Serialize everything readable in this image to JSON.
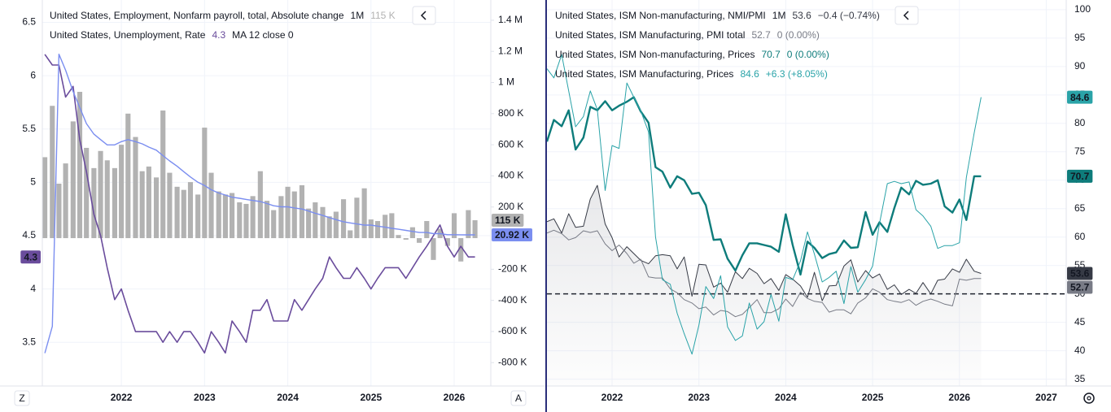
{
  "chart_data": [
    {
      "type": "bar",
      "scale_button": "Z",
      "x": [
        2021.08,
        2021.17,
        2021.25,
        2021.33,
        2021.42,
        2021.5,
        2021.58,
        2021.67,
        2021.75,
        2021.83,
        2021.92,
        2022,
        2022.08,
        2022.17,
        2022.25,
        2022.33,
        2022.42,
        2022.5,
        2022.58,
        2022.67,
        2022.75,
        2022.83,
        2022.92,
        2023,
        2023.08,
        2023.17,
        2023.25,
        2023.33,
        2023.42,
        2023.5,
        2023.58,
        2023.67,
        2023.75,
        2023.83,
        2023.92,
        2024,
        2024.08,
        2024.17,
        2024.25,
        2024.33,
        2024.42,
        2024.5,
        2024.58,
        2024.67,
        2024.75,
        2024.83,
        2024.92,
        2025,
        2025.08,
        2025.17,
        2025.25,
        2025.33,
        2025.42,
        2025.5,
        2025.58,
        2025.67,
        2025.75,
        2025.83,
        2025.92,
        2026,
        2026.08,
        2026.17,
        2026.25
      ],
      "xlim": [
        2021.05,
        2026.44
      ],
      "xticks": [
        2022,
        2023,
        2024,
        2025,
        2026
      ],
      "ylim": [
        3.09,
        6.71
      ],
      "yticks": [
        3.5,
        4,
        4.5,
        5,
        5.5,
        6,
        6.5
      ],
      "y2lim": [
        -950000,
        1530000
      ],
      "y2ticks": [
        {
          "value": -800000,
          "label": "-800 K"
        },
        {
          "value": -600000,
          "label": "-600 K"
        },
        {
          "value": -400000,
          "label": "-400 K"
        },
        {
          "value": -200000,
          "label": "-200 K"
        },
        {
          "value": 200000,
          "label": "200 K"
        },
        {
          "value": 400000,
          "label": "400 K"
        },
        {
          "value": 600000,
          "label": "600 K"
        },
        {
          "value": 800000,
          "label": "800 K"
        },
        {
          "value": 1000000,
          "label": "1 M"
        },
        {
          "value": 1200000,
          "label": "1.2 M"
        },
        {
          "value": 1400000,
          "label": "1.4 M"
        }
      ],
      "grid": true,
      "series": [
        {
          "name": "United States, Employment, Nonfarm payroll, total, Absolute change",
          "interval": "1M",
          "type": "bar",
          "axis": "y2",
          "color": "#b2b2b2",
          "last_value_label": "115 K",
          "values": [
            520000,
            850000,
            350000,
            480000,
            750000,
            940000,
            580000,
            450000,
            560000,
            500000,
            450000,
            600000,
            800000,
            650000,
            430000,
            460000,
            390000,
            820000,
            420000,
            330000,
            310000,
            360000,
            280000,
            710000,
            420000,
            300000,
            280000,
            290000,
            230000,
            220000,
            270000,
            430000,
            240000,
            180000,
            270000,
            330000,
            300000,
            340000,
            190000,
            230000,
            200000,
            140000,
            170000,
            250000,
            50000,
            260000,
            320000,
            120000,
            110000,
            150000,
            160000,
            20000,
            -10000,
            70000,
            -30000,
            110000,
            -140000,
            60000,
            -50000,
            160000,
            -150000,
            180000,
            115000
          ]
        },
        {
          "name": "United States, Unemployment, Rate",
          "type": "line",
          "color": "#6a4c9c",
          "values": [
            6.2,
            6.1,
            6.1,
            5.8,
            5.9,
            5.4,
            5.1,
            4.7,
            4.5,
            4.2,
            3.9,
            4.0,
            3.8,
            3.6,
            3.6,
            3.6,
            3.6,
            3.5,
            3.6,
            3.5,
            3.6,
            3.6,
            3.5,
            3.4,
            3.6,
            3.5,
            3.4,
            3.7,
            3.6,
            3.5,
            3.8,
            3.8,
            3.9,
            3.7,
            3.7,
            3.7,
            3.9,
            3.8,
            3.9,
            4.0,
            4.1,
            4.3,
            4.2,
            4.1,
            4.1,
            4.2,
            4.1,
            4.0,
            4.1,
            4.2,
            4.2,
            4.2,
            4.1,
            4.2,
            4.3,
            4.4,
            4.5,
            4.6,
            4.4,
            4.3,
            4.4,
            4.3,
            4.3
          ]
        },
        {
          "name": "MA 12 close 0",
          "type": "line",
          "axis": "y2",
          "color": "#7b8ef0",
          "last_value_label": "20.92 K",
          "values": [
            -739000,
            -567000,
            1182000,
            1079000,
            942000,
            839000,
            736000,
            668000,
            633000,
            599000,
            599000,
            620000,
            633000,
            620000,
            606000,
            585000,
            565000,
            530000,
            496000,
            462000,
            427000,
            393000,
            359000,
            338000,
            311000,
            290000,
            277000,
            263000,
            256000,
            249000,
            242000,
            235000,
            222000,
            208000,
            201000,
            201000,
            194000,
            187000,
            174000,
            160000,
            146000,
            132000,
            119000,
            105000,
            98000,
            91000,
            84000,
            84000,
            77000,
            70000,
            63000,
            57000,
            50000,
            43000,
            36000,
            36000,
            29000,
            29000,
            22000,
            22000,
            21500,
            21200,
            20920
          ]
        }
      ]
    },
    {
      "type": "line",
      "scale_button": "A",
      "x": [
        2021.25,
        2021.33,
        2021.42,
        2021.5,
        2021.58,
        2021.67,
        2021.75,
        2021.83,
        2021.92,
        2022,
        2022.08,
        2022.17,
        2022.25,
        2022.33,
        2022.42,
        2022.5,
        2022.58,
        2022.67,
        2022.75,
        2022.83,
        2022.92,
        2023,
        2023.08,
        2023.17,
        2023.25,
        2023.33,
        2023.42,
        2023.5,
        2023.58,
        2023.67,
        2023.75,
        2023.83,
        2023.92,
        2024,
        2024.08,
        2024.17,
        2024.25,
        2024.33,
        2024.42,
        2024.5,
        2024.58,
        2024.67,
        2024.75,
        2024.83,
        2024.92,
        2025,
        2025.08,
        2025.17,
        2025.25,
        2025.33,
        2025.42,
        2025.5,
        2025.58,
        2025.67,
        2025.75,
        2025.83,
        2025.92,
        2026,
        2026.08,
        2026.17,
        2026.25
      ],
      "xlim": [
        2021.25,
        2027.23
      ],
      "xticks": [
        2022,
        2023,
        2024,
        2025,
        2026,
        2027
      ],
      "ylim": [
        33.8,
        101.7
      ],
      "yticks": [
        35,
        40,
        45,
        50,
        55,
        60,
        65,
        70,
        75,
        80,
        85,
        90,
        95,
        100
      ],
      "grid": true,
      "reference_line": 50,
      "series": [
        {
          "name": "United States, ISM Non-manufacturing, NMI/PMI",
          "interval": "1M",
          "change": "−0.4 (−0.74%)",
          "color": "#363a45",
          "area": true,
          "values": [
            62.7,
            63.2,
            60.7,
            64.1,
            61.7,
            61.9,
            66.7,
            69.1,
            62.3,
            59.9,
            56.5,
            58.3,
            57.1,
            55.9,
            55.3,
            56.7,
            56.9,
            56.7,
            54.4,
            56.5,
            49.6,
            55.2,
            55.1,
            51.2,
            51.9,
            50.3,
            53.9,
            52.7,
            54.5,
            53.6,
            51.8,
            52.7,
            50.6,
            53.4,
            52.6,
            51.4,
            49.4,
            53.8,
            48.8,
            51.4,
            51.5,
            54.9,
            56.0,
            52.1,
            54.1,
            52.8,
            53.5,
            50.8,
            51.6,
            49.9,
            50.8,
            50.1,
            52.0,
            50.0,
            52.4,
            52.6,
            54.4,
            53.8,
            56.1,
            54.0,
            53.6
          ]
        },
        {
          "name": "United States, ISM Manufacturing, PMI total",
          "change": "0 (0.00%)",
          "color": "#787b86",
          "values": [
            60.7,
            61.2,
            60.6,
            59.5,
            59.9,
            61.1,
            60.8,
            61.1,
            58.8,
            57.6,
            58.6,
            57.1,
            55.4,
            56.1,
            53.0,
            52.8,
            52.8,
            50.9,
            50.2,
            49.0,
            48.4,
            47.4,
            47.7,
            46.3,
            47.1,
            46.9,
            46.0,
            46.4,
            47.6,
            49.0,
            46.7,
            46.7,
            47.4,
            49.1,
            47.8,
            50.3,
            49.2,
            48.7,
            48.5,
            46.8,
            47.2,
            47.2,
            46.5,
            48.4,
            49.3,
            50.9,
            50.3,
            49.0,
            48.7,
            48.5,
            49.0,
            48.0,
            48.7,
            49.1,
            48.7,
            48.2,
            47.9,
            52.6,
            52.4,
            52.7,
            52.7
          ]
        },
        {
          "name": "United States, ISM Non-manufacturing, Prices",
          "change": "0 (0.00%)",
          "color": "#0e7c7b",
          "values": [
            76.8,
            80.6,
            79.5,
            82.3,
            75.4,
            77.5,
            82.9,
            82.3,
            83.9,
            82.3,
            83.1,
            83.8,
            84.6,
            82.1,
            80.1,
            72.3,
            71.5,
            68.7,
            70.7,
            70.0,
            67.6,
            67.8,
            65.6,
            59.5,
            59.6,
            56.2,
            54.1,
            56.8,
            58.9,
            58.9,
            58.6,
            58.3,
            57.4,
            64.0,
            58.6,
            53.4,
            59.2,
            58.1,
            56.3,
            57.0,
            57.3,
            59.4,
            58.1,
            58.2,
            64.4,
            60.4,
            62.6,
            60.9,
            65.1,
            68.7,
            67.5,
            69.9,
            69.2,
            69.4,
            70.0,
            65.4,
            64.3,
            66.6,
            63.0,
            70.7,
            70.7
          ]
        },
        {
          "name": "United States, ISM Manufacturing, Prices",
          "change": "+6.3 (+8.05%)",
          "color": "#2aa3a8",
          "values": [
            89.6,
            88.0,
            92.1,
            85.7,
            79.4,
            81.2,
            85.7,
            82.4,
            68.2,
            76.1,
            75.6,
            87.1,
            84.6,
            82.2,
            78.5,
            60.0,
            52.5,
            51.7,
            46.6,
            43.0,
            39.4,
            44.5,
            51.3,
            49.2,
            53.2,
            44.2,
            41.8,
            42.6,
            48.4,
            43.8,
            45.1,
            49.9,
            45.2,
            52.9,
            52.5,
            55.8,
            60.9,
            57.0,
            52.1,
            52.9,
            54.0,
            48.3,
            54.8,
            50.3,
            52.5,
            54.9,
            62.4,
            69.4,
            69.8,
            69.4,
            69.7,
            64.8,
            63.7,
            61.9,
            58.0,
            58.5,
            58.5,
            59.0,
            70.5,
            78.3,
            84.6
          ]
        }
      ]
    }
  ]
}
